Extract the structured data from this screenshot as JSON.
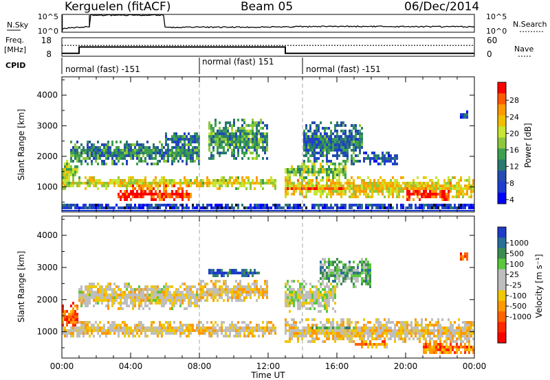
{
  "header": {
    "title": "Kerguelen (fitACF)",
    "beam": "Beam 05",
    "date": "06/Dec/2014"
  },
  "noise_panel": {
    "left_label": "N.Sky",
    "right_label": "N.Search",
    "left_ticks": [
      "10^5",
      "10^0"
    ],
    "right_ticks": [
      "10^5",
      "10^0"
    ]
  },
  "freq_panel": {
    "left_label_line1": "Freq.",
    "left_label_line2": "[MHz]",
    "right_label": "Nave",
    "left_ticks": [
      "18",
      "8"
    ],
    "right_ticks": [
      "60",
      "0"
    ]
  },
  "cpid_panel": {
    "label": "CPID",
    "segments": [
      {
        "text": "normal (fast) -151",
        "start_hour": 0
      },
      {
        "text": "normal (fast) 151",
        "start_hour": 8
      },
      {
        "text": "normal (fast) -151",
        "start_hour": 14
      }
    ]
  },
  "power_panel": {
    "ylabel": "Slant Range [km]",
    "colorbar_label": "Power [dB]",
    "colorbar_ticks": [
      "28",
      "24",
      "20",
      "16",
      "12",
      "8",
      "4"
    ],
    "colors": [
      "#ff0000",
      "#ff5a00",
      "#ff9a00",
      "#f0c000",
      "#c8e632",
      "#8cc83c",
      "#3ca050",
      "#2a7a6e",
      "#244ab4",
      "#1e3cd2",
      "#0000ff"
    ]
  },
  "velocity_panel": {
    "ylabel": "Slant Range [km]",
    "colorbar_label": "Velocity [m s⁻¹]",
    "colorbar_ticks": [
      "1000",
      "500",
      "100",
      "25",
      "-25",
      "-100",
      "-500",
      "-1000"
    ],
    "colors": [
      "#1e3cc8",
      "#2a6e9a",
      "#3c8c50",
      "#5ac83c",
      "#bebebe",
      "#bebebe",
      "#f0c800",
      "#ff9a00",
      "#ff6400",
      "#ff2800",
      "#ff0000"
    ]
  },
  "axes": {
    "xlabel": "Time UT",
    "x_tick_labels": [
      "00:00",
      "04:00",
      "08:00",
      "12:00",
      "16:00",
      "20:00",
      "00:00"
    ],
    "y_tick_labels": [
      "1000",
      "2000",
      "3000",
      "4000"
    ]
  },
  "chart_data": [
    {
      "type": "line",
      "panel": "noise",
      "ylabel": "N.Sky",
      "yscale": "log",
      "ylim": [
        1,
        100000
      ],
      "series": [
        {
          "x_hours": [
            0,
            1.6,
            1.61,
            6,
            12,
            16,
            20,
            24
          ],
          "values": [
            10,
            30,
            100000,
            20,
            25,
            40,
            35,
            30
          ]
        }
      ]
    },
    {
      "type": "line",
      "panel": "frequency",
      "ylabel": "Freq. [MHz]",
      "ylim": [
        8,
        18
      ],
      "xlim_hours": [
        0,
        24
      ],
      "series": [
        {
          "x_hours": [
            0,
            1,
            1,
            13,
            13,
            24
          ],
          "values": [
            9,
            9,
            13,
            13,
            9,
            9
          ]
        },
        {
          "x_hours": [
            0,
            24
          ],
          "values": [
            14,
            14
          ]
        }
      ]
    },
    {
      "type": "heatmap",
      "panel": "power",
      "xlabel": "Time UT",
      "ylabel": "Slant Range [km]",
      "xlim_hours": [
        0,
        24
      ],
      "ylim_km": [
        180,
        4600
      ],
      "colorbar": "Power [dB]",
      "blobs": [
        {
          "t0": 0,
          "t1": 12.5,
          "r0": 900,
          "r1": 1300,
          "level": 0.6
        },
        {
          "t0": 3.3,
          "t1": 7.5,
          "r0": 500,
          "r1": 900,
          "level": 0.95
        },
        {
          "t0": 4,
          "t1": 8.2,
          "r0": 900,
          "r1": 1200,
          "level": 0.8
        },
        {
          "t0": 13,
          "t1": 24,
          "r0": 600,
          "r1": 1300,
          "level": 0.65
        },
        {
          "t0": 13,
          "t1": 16.5,
          "r0": 700,
          "r1": 1100,
          "level": 0.85
        },
        {
          "t0": 20,
          "t1": 22.5,
          "r0": 500,
          "r1": 1000,
          "level": 0.95
        },
        {
          "t0": 0,
          "t1": 1,
          "r0": 1000,
          "r1": 1900,
          "level": 0.55
        },
        {
          "t0": 13,
          "t1": 16.5,
          "r0": 1200,
          "r1": 1800,
          "level": 0.5
        },
        {
          "t0": 0.5,
          "t1": 8,
          "r0": 1700,
          "r1": 2500,
          "level": 0.35
        },
        {
          "t0": 6,
          "t1": 8,
          "r0": 2300,
          "r1": 2800,
          "level": 0.3
        },
        {
          "t0": 8.5,
          "t1": 12,
          "r0": 1900,
          "r1": 3200,
          "level": 0.4
        },
        {
          "t0": 14,
          "t1": 17.5,
          "r0": 1700,
          "r1": 3100,
          "level": 0.3
        },
        {
          "t0": 17.5,
          "t1": 19.5,
          "r0": 1700,
          "r1": 2100,
          "level": 0.2
        },
        {
          "t0": 23.2,
          "t1": 23.6,
          "r0": 3200,
          "r1": 3500,
          "level": 0.2
        },
        {
          "t0": 0,
          "t1": 24,
          "r0": 180,
          "r1": 450,
          "level": 0.15
        }
      ]
    },
    {
      "type": "heatmap",
      "panel": "velocity",
      "xlabel": "Time UT",
      "ylabel": "Slant Range [km]",
      "xlim_hours": [
        0,
        24
      ],
      "ylim_km": [
        180,
        4600
      ],
      "colorbar": "Velocity [m s⁻¹]",
      "blobs": [
        {
          "t0": 0,
          "t1": 12.5,
          "r0": 800,
          "r1": 1300,
          "level": 0.45
        },
        {
          "t0": 13,
          "t1": 24,
          "r0": 600,
          "r1": 1400,
          "level": 0.45
        },
        {
          "t0": 14.5,
          "t1": 17,
          "r0": 800,
          "r1": 1300,
          "level": 0.72
        },
        {
          "t0": 17,
          "t1": 19,
          "r0": 500,
          "r1": 700,
          "level": 0.3
        },
        {
          "t0": 21,
          "t1": 24,
          "r0": 250,
          "r1": 700,
          "level": 0.25
        },
        {
          "t0": 0,
          "t1": 1,
          "r0": 1000,
          "r1": 1900,
          "level": 0.22
        },
        {
          "t0": 1,
          "t1": 8,
          "r0": 1700,
          "r1": 2500,
          "level": 0.48
        },
        {
          "t0": 8,
          "t1": 12,
          "r0": 1900,
          "r1": 2600,
          "level": 0.46
        },
        {
          "t0": 8.5,
          "t1": 11.5,
          "r0": 2700,
          "r1": 3000,
          "level": 0.9
        },
        {
          "t0": 13,
          "t1": 16,
          "r0": 1600,
          "r1": 2600,
          "level": 0.55
        },
        {
          "t0": 15,
          "t1": 18,
          "r0": 2400,
          "r1": 3300,
          "level": 0.7
        },
        {
          "t0": 23.2,
          "t1": 23.6,
          "r0": 3200,
          "r1": 3500,
          "level": 0.2
        }
      ]
    }
  ]
}
